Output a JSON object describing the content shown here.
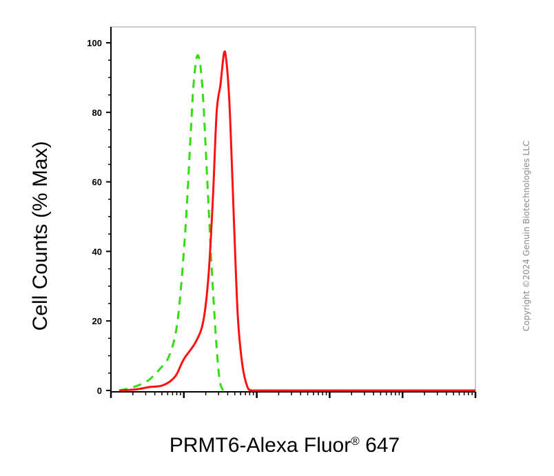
{
  "chart_data": {
    "type": "line",
    "xlabel_prefix": "PRMT6-Alexa Fluor",
    "xlabel_mark": "®",
    "xlabel_suffix": " 647",
    "ylabel": "Cell Counts (% Max)",
    "ylim": [
      0,
      100
    ],
    "yticks": [
      "0",
      "20",
      "40",
      "60",
      "80",
      "100"
    ],
    "xscale": "log",
    "xlim": [
      1,
      100000
    ],
    "grid": false,
    "series": [
      {
        "style": "dashed",
        "color": "#33dd11",
        "x": [
          1.3,
          1.7,
          2.4,
          3.3,
          4.6,
          6.3,
          8.2,
          10.4,
          12.5,
          13.6,
          15.1,
          16.7,
          18.5,
          21.0,
          24.0,
          27.8,
          31.0,
          34.5
        ],
        "y": [
          0,
          0.5,
          1.5,
          3,
          6,
          10,
          20,
          45,
          75,
          88,
          96,
          94,
          83,
          60,
          36,
          14,
          3,
          0
        ]
      },
      {
        "style": "solid",
        "color": "#ff1010",
        "x": [
          1.3,
          2.2,
          3.4,
          5.2,
          7.6,
          10.0,
          14.6,
          18.5,
          21.8,
          25.0,
          28.2,
          31.8,
          35.6,
          38.2,
          41.9,
          45.6,
          49.8,
          55.5,
          63.9,
          74.6,
          85.2,
          100,
          300,
          1000,
          10000,
          100000
        ],
        "y": [
          0,
          0.3,
          1,
          1.5,
          4,
          9,
          14,
          20,
          33,
          55,
          80,
          88,
          97,
          95,
          84,
          65,
          43,
          20,
          7,
          1,
          0,
          0,
          0,
          0,
          0,
          0
        ]
      }
    ]
  },
  "copyright": "Copyright ©2024 Genuin Biotechnologies LLC"
}
